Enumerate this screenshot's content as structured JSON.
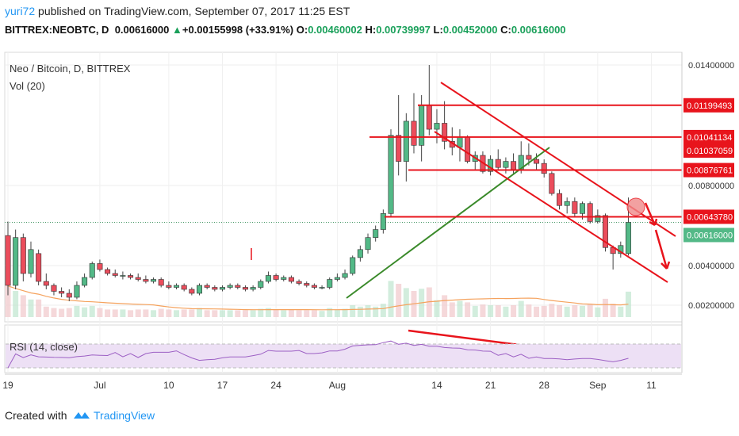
{
  "header": {
    "user": "yuri72",
    "published": "published on TradingView.com, September 07, 2017 11:25 EST"
  },
  "ticker": {
    "symbol": "BITTREX:NEOBTC, D",
    "last": "0.00616000",
    "arrow": "▲",
    "change": "+0.00155998 (+33.91%)",
    "o_label": "O:",
    "o": "0.00460002",
    "h_label": "H:",
    "h": "0.00739997",
    "l_label": "L:",
    "l": "0.00452000",
    "c_label": "C:",
    "c": "0.00616000"
  },
  "footer": {
    "created": "Created with",
    "brand": "TradingView"
  },
  "chart_data": {
    "type": "candlestick",
    "title": "Neo / Bitcoin, D, BITTREX",
    "volume_label": "Vol (20)",
    "rsi_label": "RSI (14, close)",
    "price_axis_ticks": [
      "0.01400000",
      "0.00800000",
      "0.00400000",
      "0.00200000"
    ],
    "price_axis_values": [
      0.014,
      0.008,
      0.004,
      0.002
    ],
    "horizontal_levels": [
      {
        "label": "0.01199493",
        "value": 0.01199493
      },
      {
        "label": "0.01041134",
        "value": 0.01041134
      },
      {
        "label": "0.00876761",
        "value": 0.00876761
      },
      {
        "label": "0.00643780",
        "value": 0.0064378
      }
    ],
    "extra_labels": [
      {
        "label": "0.01037059",
        "value": 0.01037059
      }
    ],
    "last_price_label": "0.00616000",
    "last_price": 0.00616,
    "x_ticks": [
      "19",
      "Jul",
      "10",
      "17",
      "24",
      "Aug",
      "14",
      "21",
      "28",
      "Sep",
      "11"
    ],
    "x_tick_index": [
      0,
      12,
      21,
      28,
      35,
      43,
      56,
      63,
      70,
      77,
      84
    ],
    "candles": [
      [
        0.0055,
        0.0062,
        0.0025,
        0.003
      ],
      [
        0.003,
        0.0058,
        0.0028,
        0.0054
      ],
      [
        0.0054,
        0.0056,
        0.0032,
        0.0036
      ],
      [
        0.0036,
        0.0052,
        0.0034,
        0.0048
      ],
      [
        0.0046,
        0.0048,
        0.003,
        0.0032
      ],
      [
        0.0032,
        0.0036,
        0.0028,
        0.003
      ],
      [
        0.003,
        0.0031,
        0.0025,
        0.0027
      ],
      [
        0.0027,
        0.0029,
        0.0024,
        0.0026
      ],
      [
        0.0026,
        0.0028,
        0.0022,
        0.0024
      ],
      [
        0.0024,
        0.0032,
        0.0023,
        0.003
      ],
      [
        0.003,
        0.0036,
        0.0029,
        0.0034
      ],
      [
        0.0034,
        0.0042,
        0.0033,
        0.0041
      ],
      [
        0.0041,
        0.0043,
        0.0037,
        0.0038
      ],
      [
        0.0038,
        0.0039,
        0.0035,
        0.0036
      ],
      [
        0.0036,
        0.0038,
        0.0034,
        0.0035
      ],
      [
        0.0035,
        0.0037,
        0.0033,
        0.0035
      ],
      [
        0.0035,
        0.0036,
        0.0033,
        0.0034
      ],
      [
        0.0034,
        0.0036,
        0.0032,
        0.0033
      ],
      [
        0.0033,
        0.0035,
        0.0031,
        0.0032
      ],
      [
        0.0032,
        0.0034,
        0.0031,
        0.0033
      ],
      [
        0.0033,
        0.0034,
        0.0029,
        0.003
      ],
      [
        0.003,
        0.0032,
        0.0028,
        0.0029
      ],
      [
        0.0029,
        0.0031,
        0.0028,
        0.003
      ],
      [
        0.003,
        0.0031,
        0.0027,
        0.0028
      ],
      [
        0.0028,
        0.0029,
        0.0025,
        0.0026
      ],
      [
        0.0026,
        0.0031,
        0.0025,
        0.003
      ],
      [
        0.003,
        0.0031,
        0.0028,
        0.0029
      ],
      [
        0.0029,
        0.003,
        0.0027,
        0.0028
      ],
      [
        0.0028,
        0.003,
        0.0027,
        0.0029
      ],
      [
        0.0029,
        0.0031,
        0.0028,
        0.003
      ],
      [
        0.003,
        0.0031,
        0.0028,
        0.0029
      ],
      [
        0.0029,
        0.003,
        0.0027,
        0.0028
      ],
      [
        0.0028,
        0.003,
        0.0027,
        0.0029
      ],
      [
        0.0029,
        0.0033,
        0.0028,
        0.0032
      ],
      [
        0.0032,
        0.0037,
        0.0031,
        0.0035
      ],
      [
        0.0035,
        0.0036,
        0.0032,
        0.0033
      ],
      [
        0.0033,
        0.0035,
        0.0032,
        0.0034
      ],
      [
        0.0034,
        0.0035,
        0.0031,
        0.0032
      ],
      [
        0.0032,
        0.0033,
        0.003,
        0.0031
      ],
      [
        0.0031,
        0.0032,
        0.0029,
        0.003
      ],
      [
        0.003,
        0.0031,
        0.0028,
        0.0029
      ],
      [
        0.0029,
        0.003,
        0.0028,
        0.0029
      ],
      [
        0.0029,
        0.0034,
        0.0028,
        0.0033
      ],
      [
        0.0033,
        0.0036,
        0.0032,
        0.0034
      ],
      [
        0.0034,
        0.0038,
        0.0033,
        0.0036
      ],
      [
        0.0036,
        0.0045,
        0.0035,
        0.0044
      ],
      [
        0.0044,
        0.005,
        0.0042,
        0.0048
      ],
      [
        0.0048,
        0.0056,
        0.0046,
        0.0054
      ],
      [
        0.0054,
        0.006,
        0.0052,
        0.0058
      ],
      [
        0.0058,
        0.0068,
        0.0056,
        0.0066
      ],
      [
        0.0066,
        0.0108,
        0.0064,
        0.0105
      ],
      [
        0.0105,
        0.0125,
        0.0085,
        0.0092
      ],
      [
        0.0092,
        0.0116,
        0.0082,
        0.0112
      ],
      [
        0.0112,
        0.0126,
        0.0096,
        0.01
      ],
      [
        0.01,
        0.0125,
        0.0092,
        0.012
      ],
      [
        0.012,
        0.014,
        0.0105,
        0.0108
      ],
      [
        0.0108,
        0.0118,
        0.0101,
        0.0111
      ],
      [
        0.0111,
        0.0122,
        0.0098,
        0.0102
      ],
      [
        0.0102,
        0.0109,
        0.0095,
        0.0099
      ],
      [
        0.0099,
        0.0108,
        0.0092,
        0.0104
      ],
      [
        0.0104,
        0.0105,
        0.0091,
        0.0092
      ],
      [
        0.0092,
        0.0097,
        0.0088,
        0.0095
      ],
      [
        0.0095,
        0.0097,
        0.0086,
        0.0087
      ],
      [
        0.0087,
        0.0095,
        0.0085,
        0.0093
      ],
      [
        0.0093,
        0.0098,
        0.0088,
        0.0089
      ],
      [
        0.0089,
        0.0094,
        0.0086,
        0.0092
      ],
      [
        0.0092,
        0.0096,
        0.0086,
        0.0088
      ],
      [
        0.0088,
        0.0102,
        0.0086,
        0.0095
      ],
      [
        0.0095,
        0.0101,
        0.009,
        0.0093
      ],
      [
        0.0093,
        0.0096,
        0.0088,
        0.0091
      ],
      [
        0.0091,
        0.0093,
        0.0084,
        0.0086
      ],
      [
        0.0086,
        0.0087,
        0.0075,
        0.0076
      ],
      [
        0.0076,
        0.0078,
        0.0068,
        0.007
      ],
      [
        0.007,
        0.0074,
        0.0066,
        0.0072
      ],
      [
        0.0072,
        0.0074,
        0.0064,
        0.0066
      ],
      [
        0.0066,
        0.0072,
        0.0063,
        0.0071
      ],
      [
        0.0071,
        0.0072,
        0.0061,
        0.0062
      ],
      [
        0.0062,
        0.0068,
        0.0061,
        0.0065
      ],
      [
        0.0065,
        0.0066,
        0.0047,
        0.0049
      ],
      [
        0.0049,
        0.005,
        0.0038,
        0.0046
      ],
      [
        0.0046,
        0.0052,
        0.0044,
        0.005
      ],
      [
        0.0046,
        0.0074,
        0.0045,
        0.00616
      ]
    ]
  }
}
